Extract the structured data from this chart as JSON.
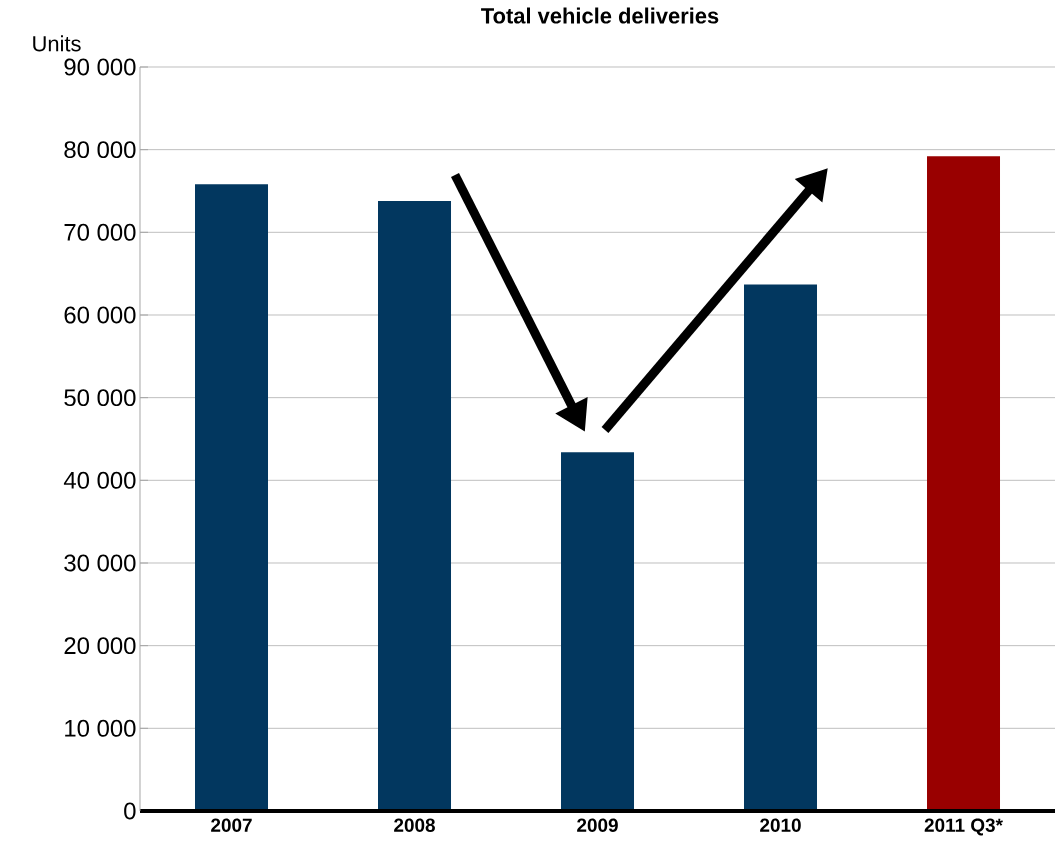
{
  "chart_data": {
    "type": "bar",
    "title": "Total vehicle deliveries",
    "ylabel": "Units",
    "categories": [
      "2007",
      "2008",
      "2009",
      "2010",
      "2011 Q3*"
    ],
    "values": [
      75800,
      73800,
      43400,
      63700,
      79200
    ],
    "colors": [
      "#02375f",
      "#02375f",
      "#02375f",
      "#02375f",
      "#990000"
    ],
    "ylim": [
      0,
      90000
    ],
    "yticks": [
      {
        "value": 0,
        "label": "0"
      },
      {
        "value": 10000,
        "label": "10 000"
      },
      {
        "value": 20000,
        "label": "20 000"
      },
      {
        "value": 30000,
        "label": "30 000"
      },
      {
        "value": 40000,
        "label": "40 000"
      },
      {
        "value": 50000,
        "label": "50 000"
      },
      {
        "value": 60000,
        "label": "60 000"
      },
      {
        "value": 70000,
        "label": "70 000"
      },
      {
        "value": 80000,
        "label": "80 000"
      },
      {
        "value": 90000,
        "label": "90 000"
      }
    ],
    "grid": "y"
  }
}
